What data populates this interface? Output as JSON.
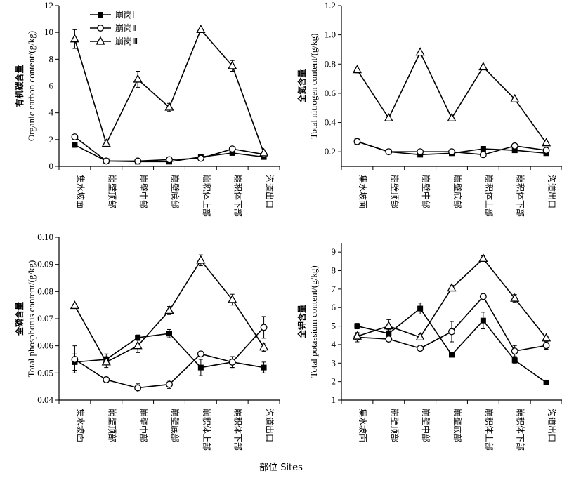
{
  "x_title": "部位 Sites",
  "categories": [
    "集水坡面",
    "崩壁顶部",
    "崩壁中部",
    "崩壁底部",
    "崩积体上部",
    "崩积体下部",
    "沟道出口"
  ],
  "legend": [
    "崩岗Ⅰ",
    "崩岗Ⅱ",
    "崩岗Ⅲ"
  ],
  "chart_data": [
    {
      "type": "line",
      "ylabel_cn": "有机碳含量",
      "ylabel_en": "Organic carbon content/(g/kg)",
      "ylim": [
        0,
        12
      ],
      "yticks": [
        "0",
        "2",
        "4",
        "6",
        "8",
        "10",
        "12"
      ],
      "series": [
        {
          "name": "崩岗Ⅰ",
          "values": [
            1.6,
            0.4,
            0.35,
            0.35,
            0.7,
            1.0,
            0.7
          ],
          "err": [
            0.1,
            0.1,
            0.1,
            0.1,
            0.1,
            0.1,
            0.1
          ]
        },
        {
          "name": "崩岗Ⅱ",
          "values": [
            2.2,
            0.4,
            0.4,
            0.5,
            0.6,
            1.3,
            0.9
          ],
          "err": [
            0.1,
            0.1,
            0.1,
            0.1,
            0.2,
            0.1,
            0.1
          ]
        },
        {
          "name": "崩岗Ⅲ",
          "values": [
            9.5,
            1.7,
            6.5,
            4.4,
            10.2,
            7.5,
            1.0
          ],
          "err": [
            0.7,
            0.2,
            0.6,
            0.3,
            0.2,
            0.4,
            0.1
          ]
        }
      ]
    },
    {
      "type": "line",
      "ylabel_cn": "全氮含量",
      "ylabel_en": "Total nitrogen content/(g/kg)",
      "ylim": [
        0.1,
        1.2
      ],
      "yticks": [
        "0.2",
        "0.4",
        "0.6",
        "0.8",
        "1.0",
        "1.2"
      ],
      "series": [
        {
          "name": "崩岗Ⅰ",
          "values": [
            0.27,
            0.2,
            0.18,
            0.19,
            0.22,
            0.21,
            0.19
          ],
          "err": [
            0.01,
            0.01,
            0.01,
            0.01,
            0.01,
            0.01,
            0.01
          ]
        },
        {
          "name": "崩岗Ⅱ",
          "values": [
            0.27,
            0.2,
            0.2,
            0.2,
            0.18,
            0.24,
            0.21
          ],
          "err": [
            0.01,
            0.01,
            0.01,
            0.01,
            0.01,
            0.01,
            0.01
          ]
        },
        {
          "name": "崩岗Ⅲ",
          "values": [
            0.76,
            0.43,
            0.88,
            0.43,
            0.78,
            0.56,
            0.26
          ],
          "err": [
            0.02,
            0.01,
            0.01,
            0.02,
            0.01,
            0.01,
            0.01
          ]
        }
      ]
    },
    {
      "type": "line",
      "ylabel_cn": "全磷含量",
      "ylabel_en": "Total phosphorus content/(g/kg)",
      "ylim": [
        0.04,
        0.1
      ],
      "yticks": [
        "0.04",
        "0.05",
        "0.06",
        "0.07",
        "0.08",
        "0.09",
        "0.10"
      ],
      "series": [
        {
          "name": "崩岗Ⅰ",
          "values": [
            0.054,
            0.055,
            0.063,
            0.0645,
            0.052,
            0.054,
            0.052
          ],
          "err": [
            0.003,
            0.002,
            0.001,
            0.0015,
            0.003,
            0.002,
            0.002
          ]
        },
        {
          "name": "崩岗Ⅱ",
          "values": [
            0.055,
            0.0475,
            0.0445,
            0.0458,
            0.057,
            0.054,
            0.0668
          ],
          "err": [
            0.005,
            0.001,
            0.0015,
            0.0015,
            0.001,
            0.002,
            0.004
          ]
        },
        {
          "name": "崩岗Ⅲ",
          "values": [
            0.0748,
            0.054,
            0.06,
            0.073,
            0.0915,
            0.077,
            0.0595
          ],
          "err": [
            0.0005,
            0.002,
            0.0025,
            0.0015,
            0.002,
            0.002,
            0.0015
          ]
        }
      ]
    },
    {
      "type": "line",
      "ylabel_cn": "全钾含量",
      "ylabel_en": "Total potassium content/(g/kg)",
      "ylim": [
        1,
        9.5
      ],
      "yticks": [
        "1",
        "2",
        "3",
        "4",
        "5",
        "6",
        "7",
        "8",
        "9"
      ],
      "series": [
        {
          "name": "崩岗Ⅰ",
          "values": [
            5.0,
            4.6,
            5.95,
            3.45,
            5.3,
            3.15,
            1.95
          ],
          "err": [
            0.15,
            0.2,
            0.3,
            0.1,
            0.45,
            0.15,
            0.1
          ]
        },
        {
          "name": "崩岗Ⅱ",
          "values": [
            4.4,
            4.3,
            3.8,
            4.7,
            6.6,
            3.65,
            3.95
          ],
          "err": [
            0.25,
            0.1,
            0.1,
            0.55,
            0.1,
            0.3,
            0.2
          ]
        },
        {
          "name": "崩岗Ⅲ",
          "values": [
            4.45,
            5.0,
            4.4,
            7.05,
            8.65,
            6.5,
            4.35
          ],
          "err": [
            0.15,
            0.35,
            0.15,
            0.15,
            0.15,
            0.2,
            0.1
          ]
        }
      ]
    }
  ]
}
